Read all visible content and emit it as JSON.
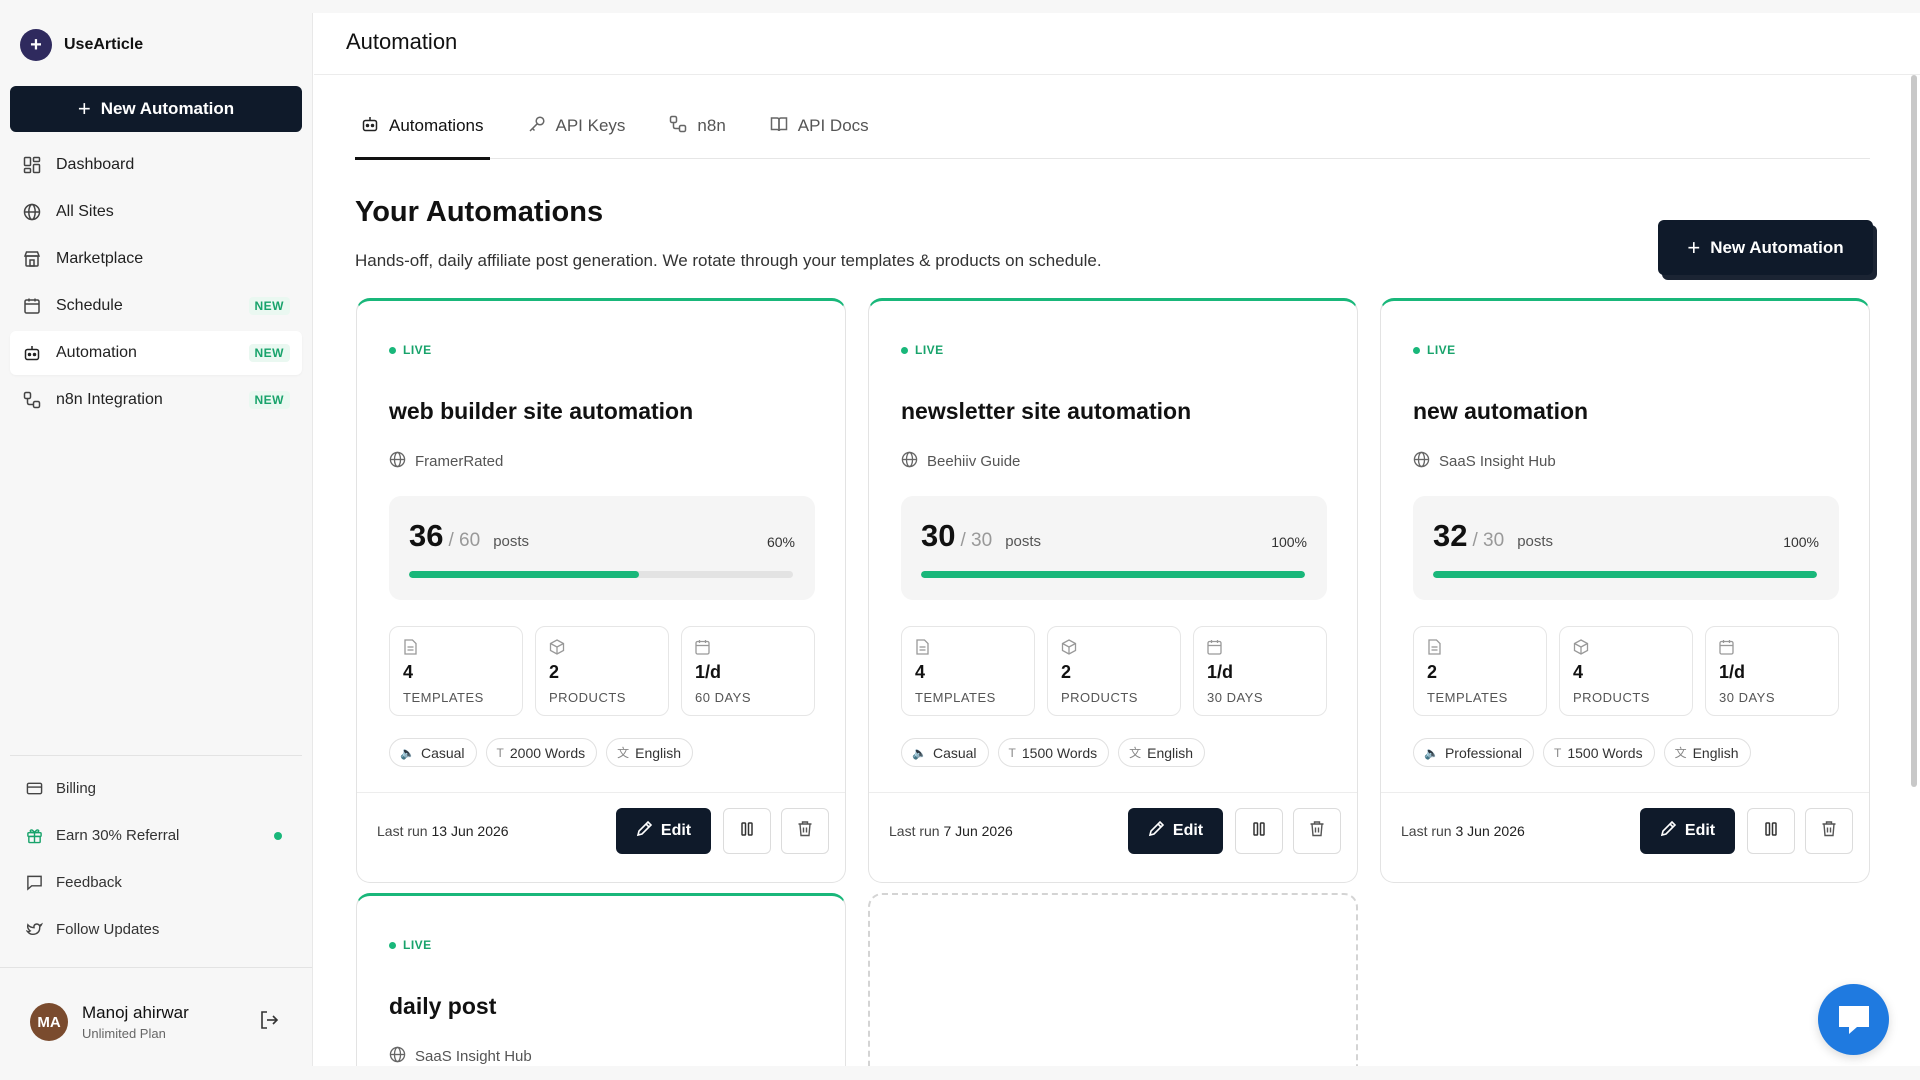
{
  "brand": {
    "logo_glyph": "+",
    "name": "UseArticle"
  },
  "sidebar": {
    "new_button": "New Automation",
    "items": [
      {
        "label": "Dashboard",
        "icon": "dashboard-icon",
        "badge": ""
      },
      {
        "label": "All Sites",
        "icon": "globe-icon",
        "badge": ""
      },
      {
        "label": "Marketplace",
        "icon": "store-icon",
        "badge": ""
      },
      {
        "label": "Schedule",
        "icon": "calendar-icon",
        "badge": "NEW"
      },
      {
        "label": "Automation",
        "icon": "bot-icon",
        "badge": "NEW",
        "active": true
      },
      {
        "label": "n8n Integration",
        "icon": "workflow-icon",
        "badge": "NEW"
      }
    ],
    "bottom_items": [
      {
        "label": "Billing",
        "icon": "credit-card-icon"
      },
      {
        "label": "Earn 30% Referral",
        "icon": "gift-icon",
        "dot": true
      },
      {
        "label": "Feedback",
        "icon": "message-icon"
      },
      {
        "label": "Follow Updates",
        "icon": "twitter-icon"
      }
    ],
    "user": {
      "initials": "MA",
      "name": "Manoj ahirwar",
      "plan": "Unlimited Plan"
    }
  },
  "header": {
    "title": "Automation"
  },
  "tabs": [
    {
      "label": "Automations",
      "icon": "bot-icon",
      "active": true
    },
    {
      "label": "API Keys",
      "icon": "key-icon"
    },
    {
      "label": "n8n",
      "icon": "workflow-icon"
    },
    {
      "label": "API Docs",
      "icon": "book-icon"
    }
  ],
  "page": {
    "heading": "Your Automations",
    "subtitle": "Hands-off, daily affiliate post generation. We rotate through your templates & products on schedule.",
    "new_button": "New Automation"
  },
  "status_live": "LIVE",
  "labels": {
    "posts": "posts",
    "templates": "TEMPLATES",
    "products": "PRODUCTS",
    "last_run": "Last run",
    "edit": "Edit"
  },
  "cards": [
    {
      "title": "web builder site automation",
      "site": "FramerRated",
      "done": "36",
      "total": "/ 60",
      "percent": "60%",
      "progress": 0.6,
      "templates": "4",
      "products": "2",
      "rate": "1/d",
      "days": "60 DAYS",
      "tone": "Casual",
      "words": "2000 Words",
      "language": "English",
      "last_run_date": "13 Jun 2026"
    },
    {
      "title": "newsletter site automation",
      "site": "Beehiiv Guide",
      "done": "30",
      "total": "/ 30",
      "percent": "100%",
      "progress": 1.0,
      "templates": "4",
      "products": "2",
      "rate": "1/d",
      "days": "30 DAYS",
      "tone": "Casual",
      "words": "1500 Words",
      "language": "English",
      "last_run_date": "7 Jun 2026"
    },
    {
      "title": "new automation",
      "site": "SaaS Insight Hub",
      "done": "32",
      "total": "/ 30",
      "percent": "100%",
      "progress": 1.0,
      "templates": "2",
      "products": "4",
      "rate": "1/d",
      "days": "30 DAYS",
      "tone": "Professional",
      "words": "1500 Words",
      "language": "English",
      "last_run_date": "3 Jun 2026"
    },
    {
      "title": "daily post",
      "site": "SaaS Insight Hub"
    }
  ],
  "colors": {
    "accent": "#19b77a",
    "dark": "#0f1a2a",
    "chat": "#1f7ae0"
  }
}
